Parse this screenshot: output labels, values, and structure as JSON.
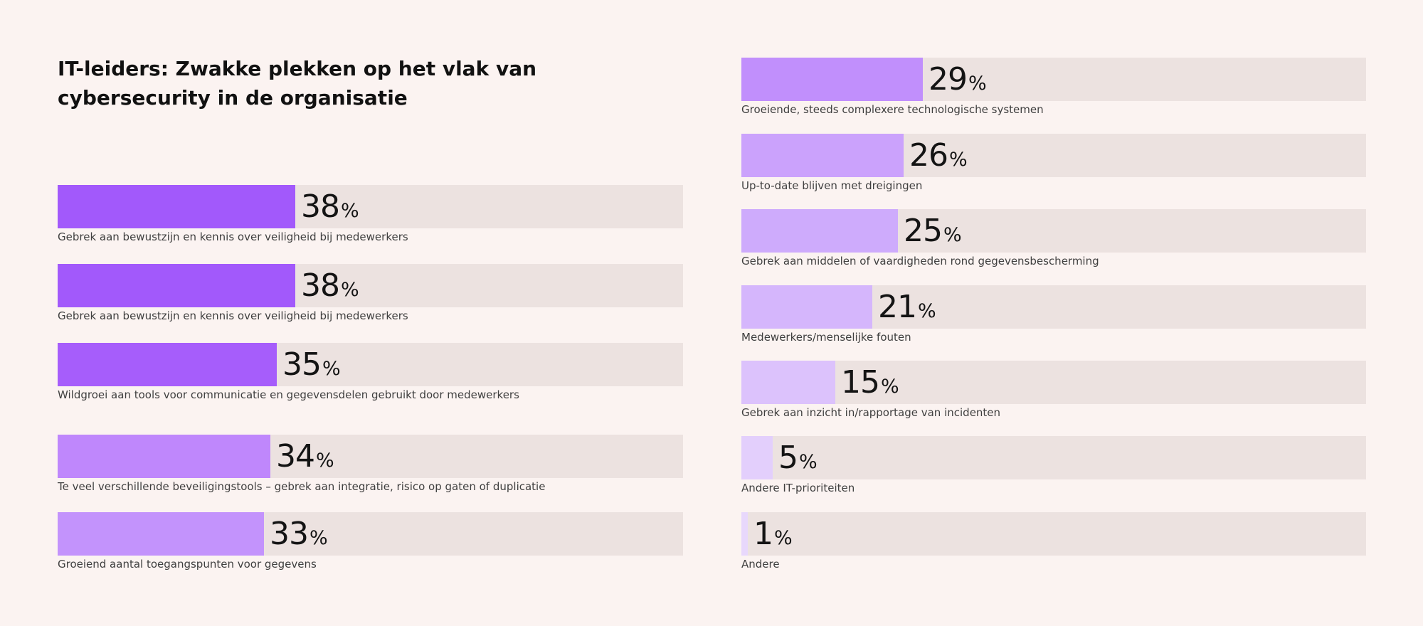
{
  "chart_data": {
    "type": "bar",
    "orientation": "horizontal",
    "title": "IT-leiders: Zwakke plekken op het vlak van cybersecurity in de organisatie",
    "unit": "%",
    "xlim": [
      0,
      100
    ],
    "groups": [
      {
        "column": "left",
        "items": [
          {
            "label": "Gebrek aan bewustzijn en kennis over veiligheid bij medewerkers",
            "value": 38,
            "color": "#a259fb"
          },
          {
            "label": "Gebrek aan bewustzijn en kennis over veiligheid bij medewerkers",
            "value": 38,
            "color": "#a259fb"
          },
          {
            "label": "Wildgroei aan tools voor communicatie en gegevensdelen gebruikt door medewerkers",
            "value": 35,
            "color": "#a65dfb"
          },
          {
            "label": "Te veel verschillende beveiligingstools – gebrek aan integratie, risico op gaten of duplicatie",
            "value": 34,
            "color": "#bf87fc"
          },
          {
            "label": "Groeiend aantal toegangspunten voor gegevens",
            "value": 33,
            "color": "#c393fc"
          }
        ]
      },
      {
        "column": "right",
        "items": [
          {
            "label": "Groeiende, steeds complexere technologische systemen",
            "value": 29,
            "color": "#c18ffc"
          },
          {
            "label": "Up-to-date blijven met dreigingen",
            "value": 26,
            "color": "#cba2fc"
          },
          {
            "label": "Gebrek aan middelen of vaardigheden rond gegevensbescherming",
            "value": 25,
            "color": "#ceabfc"
          },
          {
            "label": "Medewerkers/menselijke fouten",
            "value": 21,
            "color": "#d5b6fc"
          },
          {
            "label": "Gebrek aan inzicht in/rapportage van incidenten",
            "value": 15,
            "color": "#dcc2fc"
          },
          {
            "label": "Andere IT-prioriteiten",
            "value": 5,
            "color": "#e3cffc"
          },
          {
            "label": "Andere",
            "value": 1,
            "color": "#e8d8fc"
          }
        ]
      }
    ]
  }
}
